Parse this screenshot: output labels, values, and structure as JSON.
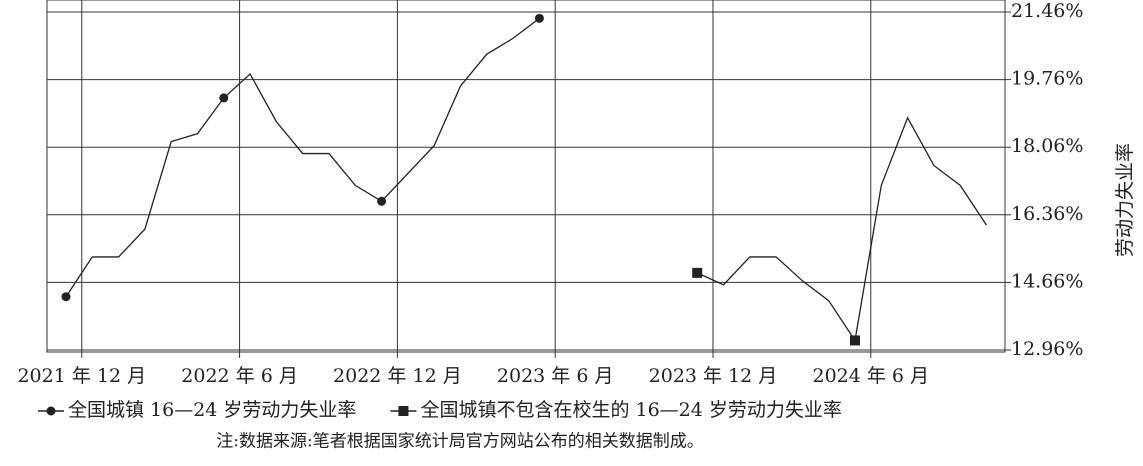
{
  "chart_data": {
    "type": "line",
    "y_label": "劳动力失业率",
    "note": "注:数据来源:笔者根据国家统计局官方网站公布的相关数据制成。",
    "categories": [
      "2021 年 12 月",
      null,
      null,
      null,
      null,
      null,
      "2022 年 6 月",
      null,
      null,
      null,
      null,
      null,
      "2022 年 12 月",
      null,
      null,
      null,
      null,
      null,
      "2023 年 6 月",
      null,
      null,
      null,
      null,
      null,
      "2023 年 12 月",
      null,
      null,
      null,
      null,
      null,
      "2024 年 6 月",
      null,
      null,
      null,
      null,
      null
    ],
    "series": [
      {
        "name": "全国城镇 16—24 岁劳动力失业率",
        "color": "#222222",
        "marker": "circle",
        "values": [
          14.3,
          15.3,
          15.3,
          16.0,
          18.2,
          18.4,
          19.3,
          19.9,
          18.7,
          17.9,
          17.9,
          17.1,
          16.7,
          17.4,
          18.1,
          19.6,
          20.4,
          20.8,
          21.3,
          null,
          null,
          null,
          null,
          null,
          null,
          null,
          null,
          null,
          null,
          null,
          null,
          null,
          null,
          null,
          null,
          null
        ]
      },
      {
        "name": "全国城镇不包含在校生的 16—24 岁劳动力失业率",
        "color": "#222222",
        "marker": "square",
        "values": [
          null,
          null,
          null,
          null,
          null,
          null,
          null,
          null,
          null,
          null,
          null,
          null,
          null,
          null,
          null,
          null,
          null,
          null,
          null,
          null,
          null,
          null,
          null,
          null,
          14.9,
          14.6,
          15.3,
          15.3,
          14.7,
          14.2,
          13.2,
          17.1,
          18.8,
          17.6,
          17.1,
          16.1
        ]
      }
    ],
    "ylim": [
      12.96,
      21.46
    ],
    "yticks": [
      {
        "value": 12.96,
        "label": "12.96%"
      },
      {
        "value": 14.66,
        "label": "14.66%"
      },
      {
        "value": 16.36,
        "label": "16.36%"
      },
      {
        "value": 18.06,
        "label": "18.06%"
      },
      {
        "value": 19.76,
        "label": "19.76%"
      },
      {
        "value": 21.46,
        "label": "21.46%"
      }
    ],
    "grid": true
  }
}
